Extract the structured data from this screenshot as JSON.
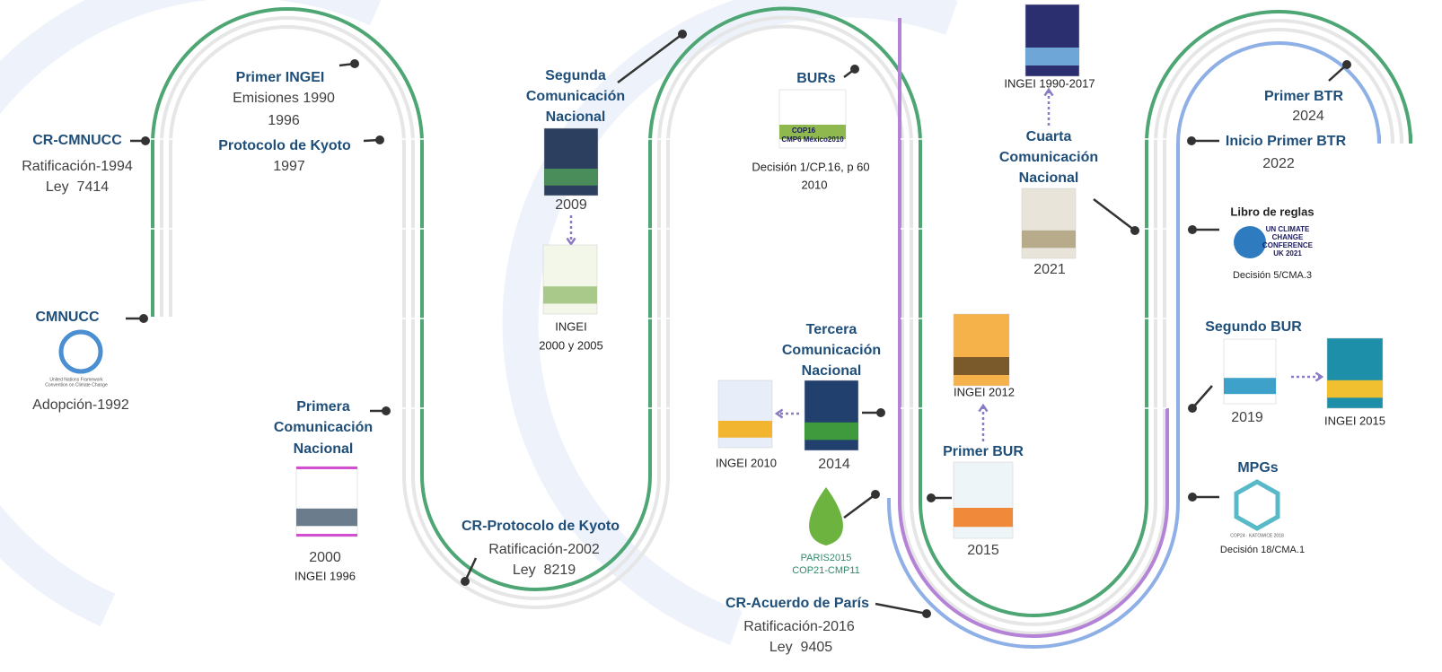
{
  "items": [
    {
      "title": [
        "CR-CMNUCC"
      ],
      "text": [
        "Ratificación-1994",
        "Ley  7414"
      ]
    },
    {
      "title": [
        "CMNUCC"
      ],
      "text": [
        "Adopción-1992"
      ]
    },
    {
      "title": [
        "Primer INGEI"
      ],
      "text": [
        "Emisiones 1990",
        "1996"
      ]
    },
    {
      "title": [
        "Protocolo de Kyoto"
      ],
      "text": [
        "1997"
      ]
    },
    {
      "title": [
        "Primera",
        "Comunicación",
        "Nacional"
      ],
      "text": [
        "2000",
        "INGEI 1996"
      ]
    },
    {
      "title": [
        "CR-Protocolo de Kyoto"
      ],
      "text": [
        "Ratificación-2002",
        "Ley  8219"
      ]
    },
    {
      "title": [
        "Segunda",
        "Comunicación",
        "Nacional"
      ],
      "text": [
        "2009",
        "INGEI",
        "2000 y 2005"
      ]
    },
    {
      "title": [
        "BURs"
      ],
      "text": [
        "Decisión 1/CP.16, p 60",
        "2010"
      ]
    },
    {
      "title": [
        "Tercera",
        "Comunicación",
        "Nacional"
      ],
      "text": [
        "2014",
        "INGEI 2010"
      ]
    },
    {
      "title": [
        "CR-Acuerdo de París"
      ],
      "text": [
        "Ratificación-2016",
        "Ley  9405"
      ]
    },
    {
      "title": [
        "Primer BUR"
      ],
      "text": [
        "2015",
        "INGEI 2012"
      ]
    },
    {
      "title": [
        "Cuarta",
        "Comunicación",
        "Nacional"
      ],
      "text": [
        "2021",
        "INGEI 1990-2017"
      ]
    },
    {
      "title": [
        "Primer BTR"
      ],
      "text": [
        "2024"
      ]
    },
    {
      "title": [
        "Inicio Primer BTR"
      ],
      "text": [
        "2022"
      ]
    },
    {
      "title": [
        "Libro de reglas"
      ],
      "text": [
        "Decisión 5/CMA.3"
      ]
    },
    {
      "title": [
        "Segundo BUR"
      ],
      "text": [
        "2019",
        "INGEI 2015"
      ]
    },
    {
      "title": [
        "MPGs"
      ],
      "text": [
        "Decisión 18/CMA.1"
      ]
    }
  ],
  "logos": {
    "unfccc": [
      "United Nations Framework",
      "Convention on Climate Change"
    ],
    "cop16": [
      "COP16",
      "CMP6 México2010"
    ],
    "uk": [
      "UN CLIMATE",
      "CHANGE",
      "CONFERENCE",
      "UK 2021"
    ],
    "paris": [
      "PARIS2015",
      "COP21-CMP11"
    ],
    "katowice": "COP24 · KATOWICE 2018"
  }
}
